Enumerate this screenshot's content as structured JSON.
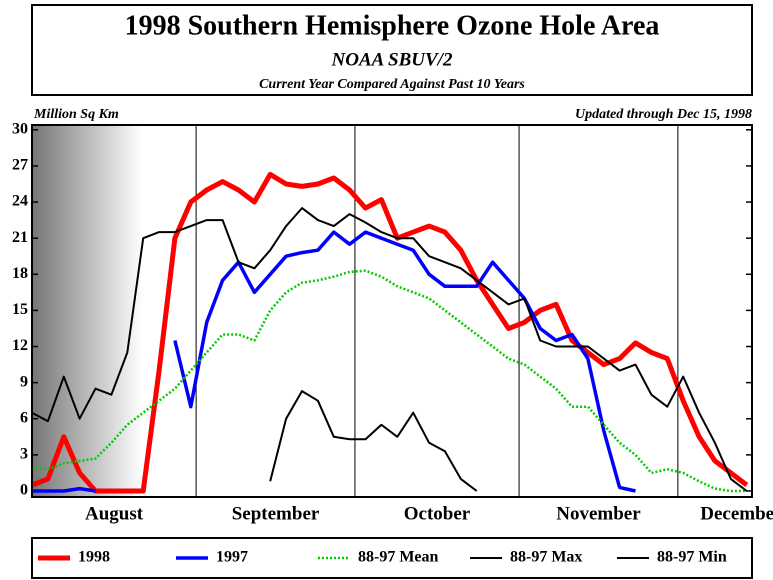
{
  "chart_data": {
    "type": "line",
    "title": "1998 Southern Hemisphere Ozone Hole Area",
    "subtitle": "NOAA SBUV/2",
    "caption": "Current Year Compared Against Past 10 Years",
    "ylabel": "Million Sq Km",
    "note": "Updated through Dec 15, 1998",
    "x": [
      0,
      3,
      6,
      9,
      12,
      15,
      18,
      21,
      24,
      27,
      30,
      33,
      36,
      39,
      42,
      45,
      48,
      51,
      54,
      57,
      60,
      63,
      66,
      69,
      72,
      75,
      78,
      81,
      84,
      87,
      90,
      93,
      96,
      99,
      102,
      105,
      108,
      111,
      114,
      117,
      120,
      123,
      126,
      129,
      132,
      135
    ],
    "xlim": [
      0,
      136
    ],
    "xticks": [
      {
        "value": 15.5,
        "label": "August"
      },
      {
        "value": 46,
        "label": "September"
      },
      {
        "value": 76.5,
        "label": "October"
      },
      {
        "value": 107,
        "label": "November"
      },
      {
        "value": 134,
        "label": "December"
      }
    ],
    "month_lines": [
      31,
      61,
      92,
      122
    ],
    "ylim": [
      -0.5,
      30.4
    ],
    "yticks": [
      0,
      3,
      6,
      9,
      12,
      15,
      18,
      21,
      24,
      27,
      30
    ],
    "series": [
      {
        "name": "1998",
        "color": "#ff0000",
        "values": [
          0.5,
          1,
          4.5,
          1.5,
          0,
          0,
          0,
          0,
          10,
          21,
          24,
          25,
          25.7,
          25,
          24,
          26.3,
          25.5,
          25.3,
          25.5,
          26,
          25,
          23.5,
          24.2,
          21,
          21.5,
          22,
          21.5,
          20,
          17.5,
          15.5,
          13.5,
          14,
          15,
          15.5,
          12.5,
          11.5,
          10.5,
          11,
          12.3,
          11.5,
          11,
          7.5,
          4.5,
          2.5,
          1.5,
          0.5
        ]
      },
      {
        "name": "1997",
        "color": "#0000ff",
        "values": [
          0,
          0,
          0,
          0.2,
          0,
          null,
          null,
          null,
          null,
          12.5,
          7,
          14,
          17.5,
          19,
          16.5,
          18,
          19.5,
          19.8,
          20,
          21.5,
          20.5,
          21.5,
          21,
          20.5,
          20,
          18,
          17,
          17,
          17,
          19,
          17.5,
          16,
          13.5,
          12.5,
          13,
          11,
          5,
          0.3,
          0,
          null,
          null,
          null,
          null,
          null,
          null,
          null
        ]
      },
      {
        "name": "88-97 Mean",
        "color": "#00cc00",
        "dotted": true,
        "values": [
          2,
          1.8,
          2.3,
          2.5,
          2.7,
          4,
          5.5,
          6.5,
          7.5,
          8.5,
          10,
          11.5,
          13,
          13,
          12.5,
          15,
          16.5,
          17.3,
          17.5,
          17.8,
          18.2,
          18.3,
          17.8,
          17,
          16.5,
          16,
          15,
          14,
          13,
          12,
          11,
          10.5,
          9.5,
          8.5,
          7,
          7,
          5.5,
          4,
          3,
          1.5,
          1.8,
          1.5,
          0.8,
          0.2,
          0,
          0
        ]
      },
      {
        "name": "88-97 Max",
        "color": "#000000",
        "values": [
          6.5,
          5.8,
          9.5,
          6,
          8.5,
          8,
          11.5,
          21,
          21.5,
          21.5,
          22,
          22.5,
          22.5,
          19,
          18.5,
          20,
          22,
          23.5,
          22.5,
          22,
          23,
          22.3,
          21.5,
          21,
          21,
          19.5,
          19,
          18.5,
          17.5,
          16.5,
          15.5,
          16,
          12.5,
          12,
          12,
          12,
          11,
          10,
          10.5,
          8,
          7,
          9.5,
          6.5,
          4,
          1,
          0
        ]
      },
      {
        "name": "88-97 Min",
        "color": "#000000",
        "values": [
          null,
          null,
          null,
          null,
          null,
          null,
          null,
          null,
          null,
          null,
          null,
          null,
          null,
          null,
          null,
          0.8,
          6,
          8.3,
          7.5,
          4.5,
          4.3,
          4.3,
          5.5,
          4.5,
          6.5,
          4,
          3.3,
          1,
          0,
          null,
          null,
          null,
          null,
          null,
          null,
          null,
          null,
          null,
          null,
          null,
          null,
          null,
          null,
          null,
          null,
          null
        ]
      }
    ]
  }
}
